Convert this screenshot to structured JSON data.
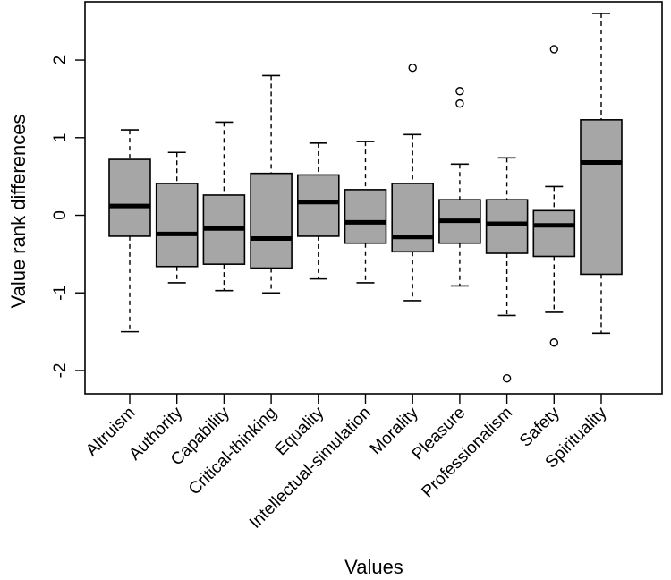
{
  "chart_data": {
    "type": "boxplot",
    "title": "",
    "xlabel": "Values",
    "ylabel": "Value rank differences",
    "ylim": [
      -2.3,
      2.75
    ],
    "yticks": [
      -2,
      -1,
      0,
      1,
      2
    ],
    "grid": false,
    "box_color": "#a6a6a6",
    "categories": [
      "Altruism",
      "Authority",
      "Capability",
      "Critical-thinking",
      "Equality",
      "Intellectual-simulation",
      "Morality",
      "Pleasure",
      "Professionalism",
      "Safety",
      "Spirituality"
    ],
    "boxes": [
      {
        "min": -1.5,
        "q1": -0.27,
        "median": 0.12,
        "q3": 0.72,
        "max": 1.1,
        "outliers": []
      },
      {
        "min": -0.87,
        "q1": -0.66,
        "median": -0.24,
        "q3": 0.41,
        "max": 0.81,
        "outliers": []
      },
      {
        "min": -0.97,
        "q1": -0.63,
        "median": -0.17,
        "q3": 0.26,
        "max": 1.2,
        "outliers": []
      },
      {
        "min": -1.0,
        "q1": -0.68,
        "median": -0.3,
        "q3": 0.54,
        "max": 1.8,
        "outliers": []
      },
      {
        "min": -0.82,
        "q1": -0.27,
        "median": 0.17,
        "q3": 0.52,
        "max": 0.93,
        "outliers": []
      },
      {
        "min": -0.87,
        "q1": -0.36,
        "median": -0.09,
        "q3": 0.33,
        "max": 0.95,
        "outliers": []
      },
      {
        "min": -1.1,
        "q1": -0.47,
        "median": -0.28,
        "q3": 0.41,
        "max": 1.04,
        "outliers": [
          1.9
        ]
      },
      {
        "min": -0.91,
        "q1": -0.36,
        "median": -0.07,
        "q3": 0.2,
        "max": 0.66,
        "outliers": [
          1.6,
          1.44
        ]
      },
      {
        "min": -1.29,
        "q1": -0.49,
        "median": -0.11,
        "q3": 0.2,
        "max": 0.74,
        "outliers": [
          -2.1
        ]
      },
      {
        "min": -1.25,
        "q1": -0.53,
        "median": -0.13,
        "q3": 0.06,
        "max": 0.37,
        "outliers": [
          2.14,
          -1.64
        ]
      },
      {
        "min": -1.52,
        "q1": -0.76,
        "median": 0.68,
        "q3": 1.23,
        "max": 2.6,
        "outliers": []
      }
    ]
  }
}
